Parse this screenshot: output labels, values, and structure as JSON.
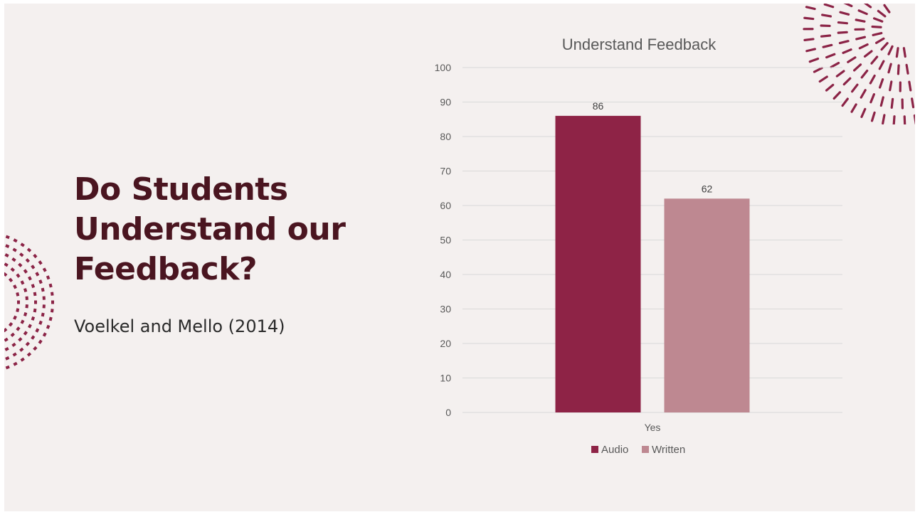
{
  "slide": {
    "title": "Do Students Understand our Feedback?",
    "subtitle": "Voelkel and Mello (2014)"
  },
  "colors": {
    "background": "#f4f0ef",
    "title": "#4a1520",
    "accent": "#8b2346",
    "audio": "#8e2346",
    "written": "#be8891",
    "grid": "#d9d9d9"
  },
  "chart_data": {
    "type": "bar",
    "title": "Understand Feedback",
    "categories": [
      "Yes"
    ],
    "series": [
      {
        "name": "Audio",
        "values": [
          86
        ]
      },
      {
        "name": "Written",
        "values": [
          62
        ]
      }
    ],
    "ylim": [
      0,
      100
    ],
    "yticks": [
      0,
      10,
      20,
      30,
      40,
      50,
      60,
      70,
      80,
      90,
      100
    ],
    "grid": true,
    "legend": "bottom",
    "data_labels": true
  }
}
